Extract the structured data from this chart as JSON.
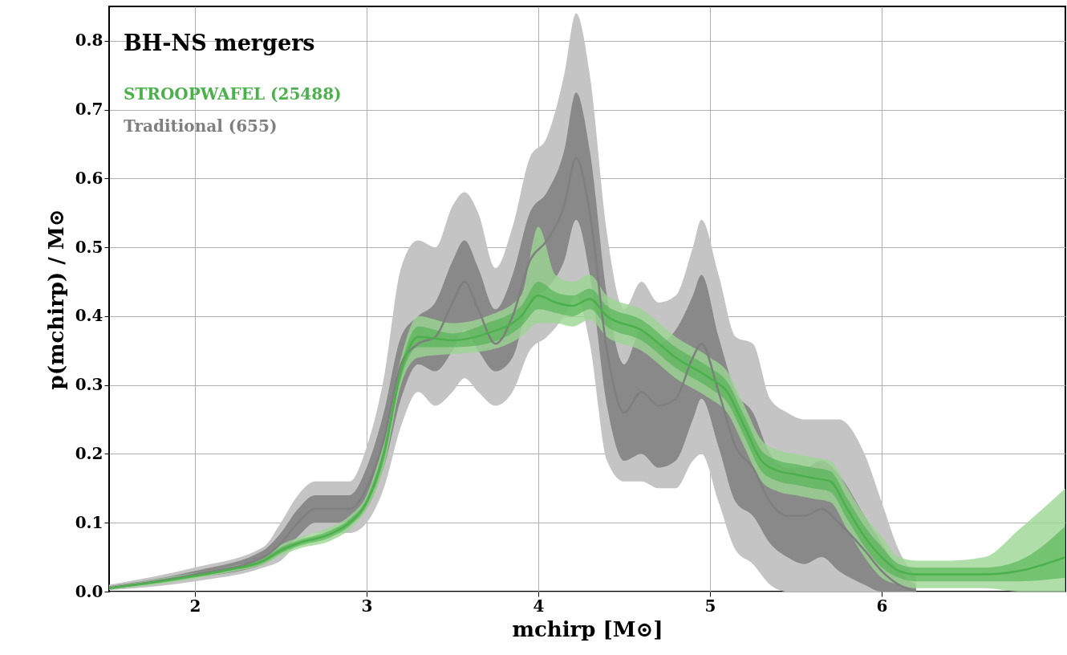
{
  "chart_data": {
    "type": "line",
    "title": "BH-NS mergers",
    "xlabel": "mchirp [M⊙]",
    "ylabel": "p(mchirp) / M⊙",
    "xlim": [
      1.5,
      7.07
    ],
    "xticks": [
      2,
      3,
      4,
      5,
      6
    ],
    "ylim": [
      0,
      0.85
    ],
    "yticks": [
      {
        "value": 0,
        "label": "0.0"
      },
      0.1,
      0.2,
      0.3,
      0.4,
      0.5,
      0.6,
      0.7,
      0.8
    ],
    "grid": true,
    "legend": "top left",
    "marker": "none",
    "line_style": "solid",
    "series": [
      {
        "color": "#c4c4c4",
        "x": [
          1.5,
          2.0,
          2.4,
          2.5,
          2.6,
          2.7,
          2.9,
          3.0,
          3.1,
          3.2,
          3.3,
          3.4,
          3.5,
          3.57,
          3.65,
          3.75,
          3.85,
          3.95,
          4.05,
          4.15,
          4.22,
          4.3,
          4.4,
          4.5,
          4.6,
          4.7,
          4.8,
          4.9,
          4.95,
          5.05,
          5.15,
          5.25,
          5.35,
          5.45,
          5.55,
          5.65,
          5.75,
          5.9,
          6.0,
          6.1,
          6.2
        ],
        "values": [
          null,
          null,
          null,
          null,
          null,
          null,
          null,
          null,
          null,
          null,
          null,
          null,
          null,
          null,
          null,
          null,
          null,
          null,
          null,
          null,
          null,
          null,
          null,
          null,
          null,
          null,
          null,
          null,
          null,
          null,
          null,
          null,
          null,
          null,
          null,
          null,
          null,
          null,
          null,
          null,
          null
        ],
        "lower": [
          0.002,
          0.015,
          0.035,
          0.045,
          0.07,
          0.085,
          0.085,
          0.1,
          0.15,
          0.24,
          0.29,
          0.27,
          0.29,
          0.31,
          0.29,
          0.27,
          0.29,
          0.35,
          0.37,
          0.4,
          0.43,
          0.36,
          0.19,
          0.16,
          0.16,
          0.15,
          0.15,
          0.19,
          0.2,
          0.13,
          0.06,
          0.04,
          0.01,
          0.0,
          0.0,
          0.0,
          0.0,
          0.0,
          0.0,
          0.0,
          0.0
        ],
        "upper": [
          0.01,
          0.035,
          0.065,
          0.1,
          0.14,
          0.16,
          0.16,
          0.21,
          0.31,
          0.47,
          0.51,
          0.5,
          0.56,
          0.58,
          0.55,
          0.47,
          0.53,
          0.63,
          0.66,
          0.75,
          0.84,
          0.75,
          0.52,
          0.41,
          0.45,
          0.42,
          0.43,
          0.5,
          0.54,
          0.46,
          0.37,
          0.36,
          0.28,
          0.26,
          0.25,
          0.25,
          0.25,
          0.2,
          0.13,
          0.06,
          0.02
        ]
      },
      {
        "name": "Traditional (655)",
        "color": "#7f7f7f",
        "x": [
          1.5,
          2.0,
          2.4,
          2.5,
          2.6,
          2.7,
          2.9,
          3.0,
          3.1,
          3.2,
          3.3,
          3.4,
          3.5,
          3.57,
          3.65,
          3.75,
          3.85,
          3.95,
          4.05,
          4.15,
          4.22,
          4.3,
          4.4,
          4.5,
          4.6,
          4.7,
          4.8,
          4.9,
          4.95,
          5.05,
          5.15,
          5.25,
          5.35,
          5.45,
          5.55,
          5.65,
          5.75,
          5.9,
          6.0,
          6.1,
          6.2
        ],
        "values": [
          0.005,
          0.025,
          0.05,
          0.07,
          0.1,
          0.12,
          0.12,
          0.15,
          0.22,
          0.33,
          0.36,
          0.37,
          0.42,
          0.45,
          0.41,
          0.36,
          0.4,
          0.48,
          0.51,
          0.56,
          0.63,
          0.55,
          0.35,
          0.26,
          0.29,
          0.27,
          0.28,
          0.34,
          0.36,
          0.29,
          0.21,
          0.18,
          0.13,
          0.11,
          0.11,
          0.12,
          0.1,
          0.06,
          0.03,
          0.01,
          0.0
        ],
        "lower": [
          0.003,
          0.02,
          0.04,
          0.055,
          0.08,
          0.1,
          0.1,
          0.12,
          0.18,
          0.28,
          0.33,
          0.32,
          0.35,
          0.38,
          0.35,
          0.32,
          0.34,
          0.42,
          0.44,
          0.48,
          0.54,
          0.46,
          0.27,
          0.19,
          0.2,
          0.18,
          0.19,
          0.25,
          0.28,
          0.21,
          0.13,
          0.11,
          0.07,
          0.05,
          0.04,
          0.05,
          0.03,
          0.01,
          0.0,
          0.0,
          0.0
        ],
        "upper": [
          0.008,
          0.03,
          0.06,
          0.085,
          0.12,
          0.14,
          0.14,
          0.18,
          0.26,
          0.37,
          0.4,
          0.42,
          0.48,
          0.51,
          0.47,
          0.41,
          0.46,
          0.55,
          0.58,
          0.64,
          0.725,
          0.64,
          0.43,
          0.33,
          0.38,
          0.36,
          0.38,
          0.43,
          0.46,
          0.37,
          0.29,
          0.26,
          0.2,
          0.18,
          0.18,
          0.19,
          0.17,
          0.11,
          0.07,
          0.03,
          0.01
        ]
      },
      {
        "color": "#9bd694",
        "x": [
          1.5,
          1.8,
          2.0,
          2.2,
          2.4,
          2.5,
          2.6,
          2.8,
          2.9,
          3.0,
          3.1,
          3.2,
          3.3,
          3.5,
          3.7,
          3.9,
          4.0,
          4.1,
          4.2,
          4.3,
          4.4,
          4.6,
          4.8,
          5.0,
          5.1,
          5.2,
          5.3,
          5.4,
          5.5,
          5.6,
          5.7,
          5.8,
          5.9,
          6.0,
          6.1,
          6.2,
          6.4,
          6.6,
          6.8,
          7.07
        ],
        "values": [
          null,
          null,
          null,
          null,
          null,
          null,
          null,
          null,
          null,
          null,
          null,
          null,
          null,
          null,
          null,
          null,
          null,
          null,
          null,
          null,
          null,
          null,
          null,
          null,
          null,
          null,
          null,
          null,
          null,
          null,
          null,
          null,
          null,
          null,
          null,
          null,
          null,
          null,
          null,
          null
        ],
        "lower": [
          0.003,
          0.011,
          0.019,
          0.028,
          0.04,
          0.052,
          0.062,
          0.075,
          0.09,
          0.12,
          0.18,
          0.3,
          0.34,
          0.345,
          0.35,
          0.37,
          0.39,
          0.39,
          0.385,
          0.395,
          0.37,
          0.35,
          0.31,
          0.28,
          0.26,
          0.21,
          0.16,
          0.145,
          0.14,
          0.135,
          0.13,
          0.09,
          0.05,
          0.02,
          0.01,
          0.005,
          0.005,
          0.005,
          0.0,
          0.0
        ],
        "upper": [
          0.007,
          0.019,
          0.027,
          0.036,
          0.05,
          0.068,
          0.078,
          0.095,
          0.11,
          0.14,
          0.22,
          0.34,
          0.4,
          0.39,
          0.4,
          0.43,
          0.53,
          0.46,
          0.45,
          0.46,
          0.43,
          0.41,
          0.37,
          0.34,
          0.32,
          0.27,
          0.22,
          0.205,
          0.2,
          0.195,
          0.19,
          0.15,
          0.11,
          0.08,
          0.05,
          0.045,
          0.045,
          0.05,
          0.09,
          0.15
        ]
      },
      {
        "name": "STROOPWAFEL (25488)",
        "color": "#4cb04c",
        "x": [
          1.5,
          1.8,
          2.0,
          2.2,
          2.4,
          2.5,
          2.6,
          2.8,
          2.9,
          3.0,
          3.1,
          3.2,
          3.3,
          3.5,
          3.7,
          3.9,
          4.0,
          4.1,
          4.2,
          4.3,
          4.4,
          4.6,
          4.8,
          5.0,
          5.1,
          5.2,
          5.3,
          5.4,
          5.5,
          5.6,
          5.7,
          5.8,
          5.9,
          6.0,
          6.1,
          6.2,
          6.4,
          6.6,
          6.8,
          7.07
        ],
        "values": [
          0.005,
          0.015,
          0.023,
          0.032,
          0.045,
          0.06,
          0.07,
          0.085,
          0.1,
          0.13,
          0.2,
          0.32,
          0.37,
          0.365,
          0.375,
          0.4,
          0.43,
          0.42,
          0.415,
          0.425,
          0.4,
          0.38,
          0.34,
          0.31,
          0.29,
          0.24,
          0.19,
          0.175,
          0.17,
          0.165,
          0.16,
          0.12,
          0.08,
          0.05,
          0.03,
          0.025,
          0.025,
          0.025,
          0.03,
          0.05
        ],
        "lower": [
          0.004,
          0.013,
          0.021,
          0.03,
          0.042,
          0.056,
          0.066,
          0.08,
          0.095,
          0.125,
          0.19,
          0.31,
          0.355,
          0.355,
          0.36,
          0.385,
          0.41,
          0.405,
          0.4,
          0.41,
          0.385,
          0.365,
          0.325,
          0.295,
          0.275,
          0.225,
          0.175,
          0.16,
          0.155,
          0.15,
          0.145,
          0.105,
          0.065,
          0.035,
          0.02,
          0.015,
          0.015,
          0.015,
          0.015,
          0.02
        ],
        "upper": [
          0.006,
          0.017,
          0.025,
          0.034,
          0.048,
          0.064,
          0.074,
          0.09,
          0.105,
          0.135,
          0.21,
          0.33,
          0.385,
          0.375,
          0.39,
          0.415,
          0.45,
          0.435,
          0.43,
          0.44,
          0.415,
          0.395,
          0.355,
          0.325,
          0.305,
          0.255,
          0.205,
          0.19,
          0.185,
          0.18,
          0.175,
          0.135,
          0.095,
          0.065,
          0.04,
          0.035,
          0.035,
          0.035,
          0.045,
          0.095
        ]
      }
    ]
  }
}
